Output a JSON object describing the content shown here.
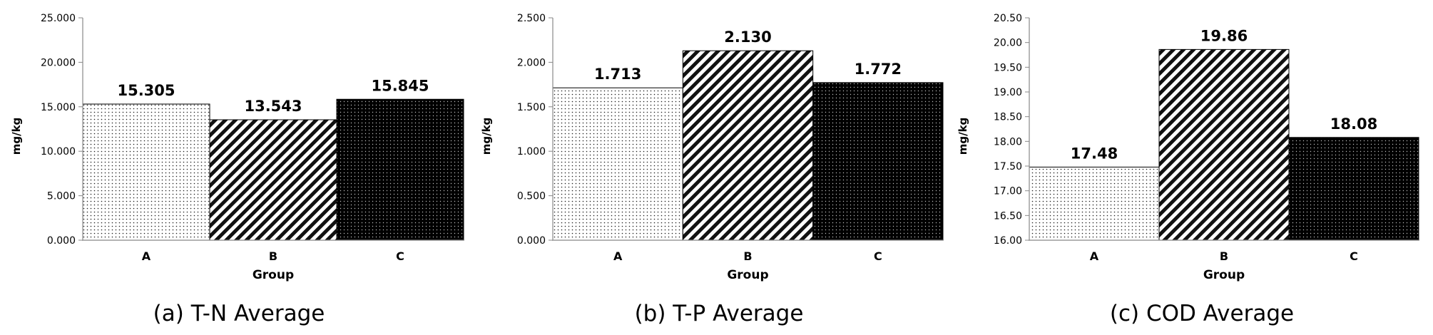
{
  "chart_data": [
    {
      "type": "bar",
      "caption": "(a) T-N Average",
      "categories": [
        "A",
        "B",
        "C"
      ],
      "values": [
        15.305,
        13.543,
        15.845
      ],
      "data_labels": [
        "15.305",
        "13.543",
        "15.845"
      ],
      "xlabel": "Group",
      "ylabel": "mg/kg",
      "ylim": [
        0,
        25
      ],
      "yticks": [
        "0.000",
        "5.000",
        "10.000",
        "15.000",
        "20.000",
        "25.000"
      ],
      "patterns": [
        "dots-light",
        "diagonal-stripes",
        "dots-dark"
      ],
      "grid": false,
      "legend": "none"
    },
    {
      "type": "bar",
      "caption": "(b) T-P Average",
      "categories": [
        "A",
        "B",
        "C"
      ],
      "values": [
        1.713,
        2.13,
        1.772
      ],
      "data_labels": [
        "1.713",
        "2.130",
        "1.772"
      ],
      "xlabel": "Group",
      "ylabel": "mg/kg",
      "ylim": [
        0,
        2.5
      ],
      "yticks": [
        "0.000",
        "0.500",
        "1.000",
        "1.500",
        "2.000",
        "2.500"
      ],
      "patterns": [
        "dots-light",
        "diagonal-stripes",
        "dots-dark"
      ],
      "grid": false,
      "legend": "none"
    },
    {
      "type": "bar",
      "caption": "(c) COD Average",
      "categories": [
        "A",
        "B",
        "C"
      ],
      "values": [
        17.48,
        19.86,
        18.08
      ],
      "data_labels": [
        "17.48",
        "19.86",
        "18.08"
      ],
      "xlabel": "Group",
      "ylabel": "mg/kg",
      "ylim": [
        16,
        20.5
      ],
      "yticks": [
        "16.00",
        "16.50",
        "17.00",
        "17.50",
        "18.00",
        "18.50",
        "19.00",
        "19.50",
        "20.00",
        "20.50"
      ],
      "patterns": [
        "dots-light",
        "diagonal-stripes",
        "dots-dark"
      ],
      "grid": false,
      "legend": "none"
    }
  ]
}
